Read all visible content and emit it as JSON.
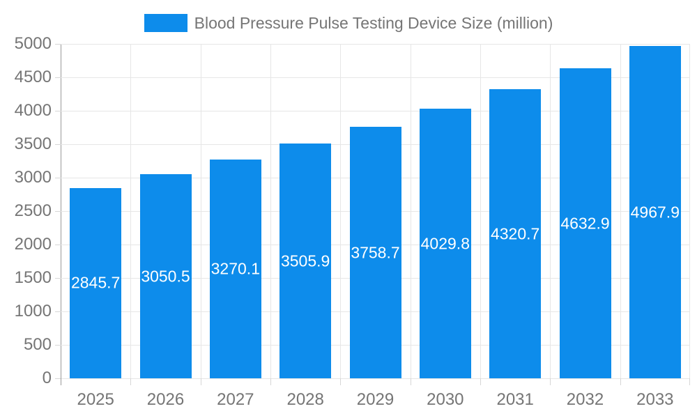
{
  "chart_data": {
    "type": "bar",
    "title": "Blood Pressure Pulse Testing Device Size (million)",
    "categories": [
      "2025",
      "2026",
      "2027",
      "2028",
      "2029",
      "2030",
      "2031",
      "2032",
      "2033"
    ],
    "series": [
      {
        "name": "Blood Pressure Pulse Testing Device Size (million)",
        "values": [
          2845.7,
          3050.5,
          3270.1,
          3505.9,
          3758.7,
          4029.8,
          4320.7,
          4632.9,
          4967.9
        ]
      }
    ],
    "xlabel": "",
    "ylabel": "",
    "ylim": [
      0,
      5000
    ],
    "ytick_step": 500,
    "yticks": [
      0,
      500,
      1000,
      1500,
      2000,
      2500,
      3000,
      3500,
      4000,
      4500,
      5000
    ],
    "grid": true,
    "legend_position": "top-center",
    "colors": {
      "bar": "#0d8ceb",
      "bar_label": "#ffffff",
      "axis_text": "#757575",
      "gridline": "#e6e6e6",
      "axis_line": "#999999",
      "tick": "#d6d6d6",
      "background": "#ffffff"
    }
  }
}
